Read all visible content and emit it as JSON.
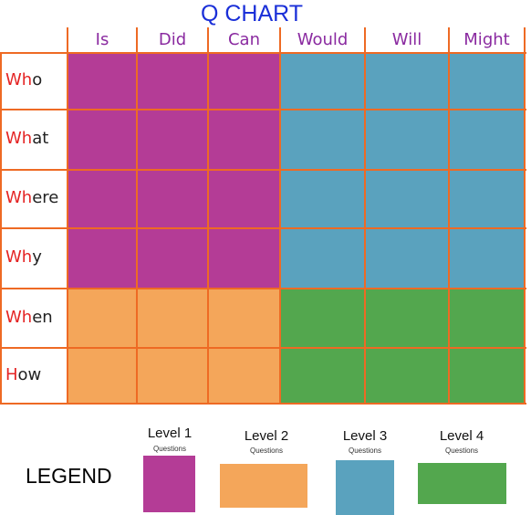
{
  "title": "Q CHART",
  "columns": [
    "Is",
    "Did",
    "Can",
    "Would",
    "Will",
    "Might"
  ],
  "rows": [
    {
      "q": "Wh",
      "rest": "o"
    },
    {
      "q": "Wh",
      "rest": "at"
    },
    {
      "q": "Wh",
      "rest": "ere"
    },
    {
      "q": "Wh",
      "rest": "y"
    },
    {
      "q": "Wh",
      "rest": "en"
    },
    {
      "q": "H",
      "rest": "ow"
    }
  ],
  "levels_grid": [
    [
      1,
      1,
      1,
      3,
      3,
      3
    ],
    [
      1,
      1,
      1,
      3,
      3,
      3
    ],
    [
      1,
      1,
      1,
      3,
      3,
      3
    ],
    [
      1,
      1,
      1,
      3,
      3,
      3
    ],
    [
      2,
      2,
      2,
      4,
      4,
      4
    ],
    [
      2,
      2,
      2,
      4,
      4,
      4
    ]
  ],
  "colors": {
    "level1": "#b43c96",
    "level2": "#f4a65a",
    "level3": "#5aa2be",
    "level4": "#53a74e",
    "grid_line": "#ee6a24"
  },
  "legend": {
    "title": "LEGEND",
    "items": [
      {
        "label": "Level 1",
        "sub": "Questions",
        "color": "#b43c96"
      },
      {
        "label": "Level 2",
        "sub": "Questions",
        "color": "#f4a65a"
      },
      {
        "label": "Level 3",
        "sub": "Questions",
        "color": "#5aa2be"
      },
      {
        "label": "Level 4",
        "sub": "Questions",
        "color": "#53a74e"
      }
    ]
  }
}
